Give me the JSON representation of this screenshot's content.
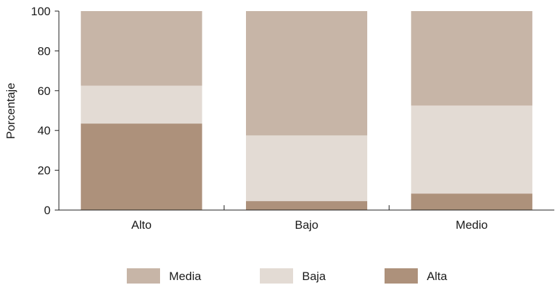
{
  "chart_data": {
    "type": "bar",
    "stacked": true,
    "categories": [
      "Alto",
      "Bajo",
      "Medio"
    ],
    "series": [
      {
        "name": "Alta",
        "values": [
          43.5,
          4.5,
          8.3
        ],
        "color": "#ad917b"
      },
      {
        "name": "Baja",
        "values": [
          19,
          33,
          44.2
        ],
        "color": "#e3dbd4"
      },
      {
        "name": "Media",
        "values": [
          37.5,
          62.5,
          47.5
        ],
        "color": "#c7b5a7"
      }
    ],
    "xlabel": "",
    "ylabel": "Porcentaje",
    "ylim": [
      0,
      100
    ],
    "yticks": [
      0,
      20,
      40,
      60,
      80,
      100
    ],
    "grid": false,
    "legend": {
      "position": "bottom",
      "order": [
        "Media",
        "Baja",
        "Alta"
      ]
    }
  }
}
